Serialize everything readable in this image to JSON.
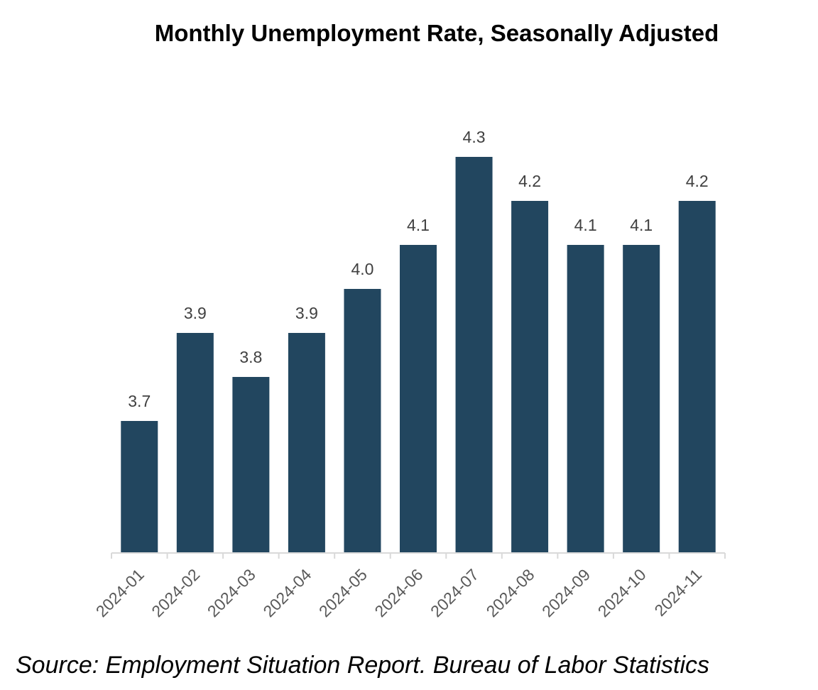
{
  "chart_data": {
    "type": "bar",
    "title": "Monthly Unemployment Rate, Seasonally Adjusted",
    "source": "Source: Employment Situation Report. Bureau of Labor Statistics",
    "categories": [
      "2024-01",
      "2024-02",
      "2024-03",
      "2024-04",
      "2024-05",
      "2024-06",
      "2024-07",
      "2024-08",
      "2024-09",
      "2024-10",
      "2024-11"
    ],
    "values": [
      3.7,
      3.9,
      3.8,
      3.9,
      4.0,
      4.1,
      4.3,
      4.2,
      4.1,
      4.1,
      4.2
    ],
    "data_labels": [
      "3.7",
      "3.9",
      "3.8",
      "3.9",
      "4.0",
      "4.1",
      "4.3",
      "4.2",
      "4.1",
      "4.1",
      "4.2"
    ],
    "xlabel": "",
    "ylabel": "",
    "ylim": [
      3.4,
      4.4
    ],
    "y_axis_visible": false,
    "grid": false,
    "bar_color": "#22465F",
    "axis_color": "#D9D9D9"
  }
}
